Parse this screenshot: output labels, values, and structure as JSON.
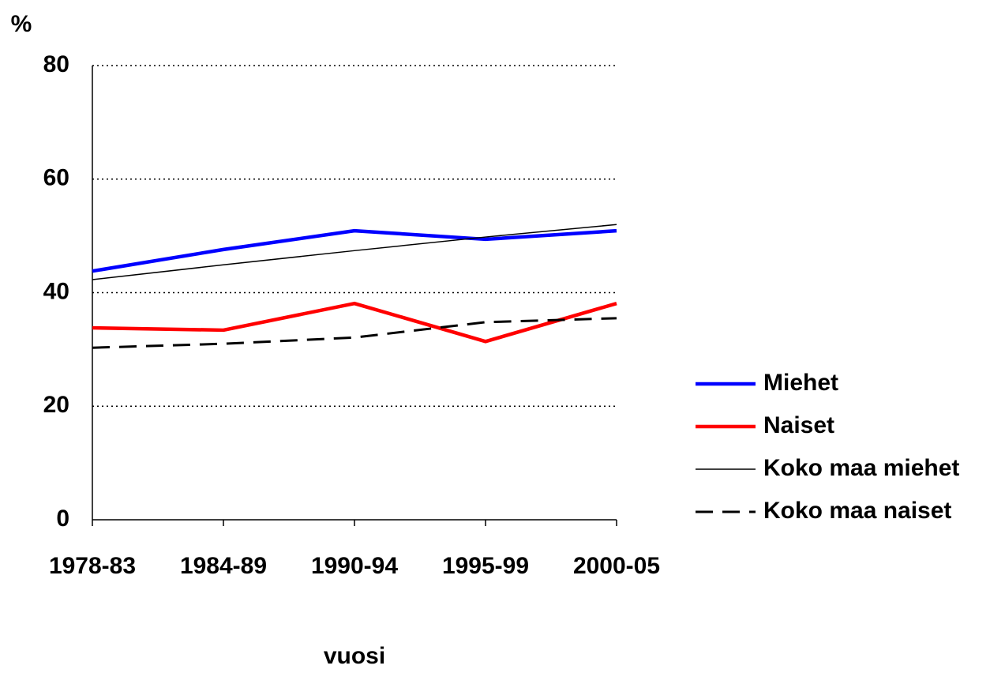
{
  "chart_data": {
    "type": "line",
    "y_label": "%",
    "x_label": "vuosi",
    "categories": [
      "1978-83",
      "1984-89",
      "1990-94",
      "1995-99",
      "2000-05"
    ],
    "series": [
      {
        "name": "Miehet",
        "color": "#0000ff",
        "line_style": "bold",
        "values": [
          43.8,
          47.6,
          50.9,
          49.4,
          50.9
        ]
      },
      {
        "name": "Naiset",
        "color": "#ff0000",
        "line_style": "bold",
        "values": [
          33.8,
          33.4,
          38.1,
          31.4,
          38.1
        ]
      },
      {
        "name": "Koko maa miehet",
        "color": "#000000",
        "line_style": "thin",
        "values": [
          42.3,
          44.9,
          47.4,
          49.8,
          52.0
        ]
      },
      {
        "name": "Koko maa naiset",
        "color": "#000000",
        "line_style": "dashed",
        "values": [
          30.3,
          31.0,
          32.1,
          34.8,
          35.5
        ]
      }
    ],
    "ylim": [
      0,
      80
    ],
    "yticks": [
      0,
      20,
      40,
      60,
      80
    ],
    "grid": true,
    "legend": "right"
  }
}
